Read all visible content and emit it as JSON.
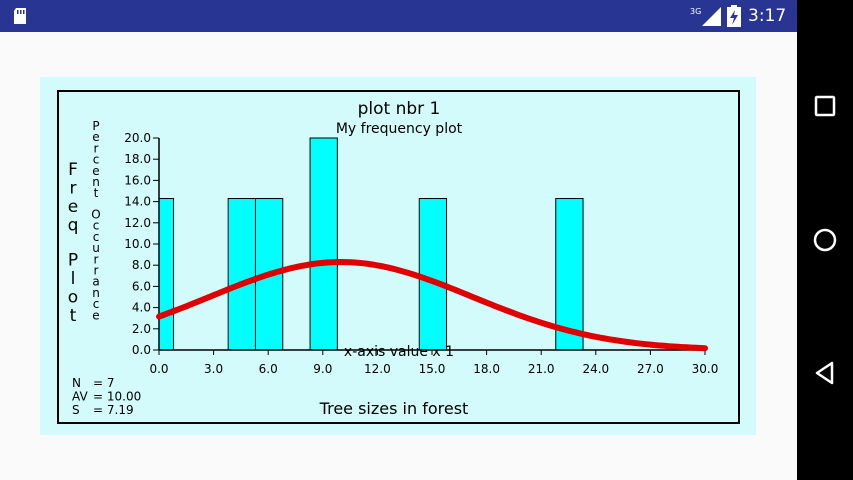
{
  "status_bar": {
    "time": "3:17",
    "network_type": "3G",
    "icons": [
      "sd-card-icon",
      "signal-icon",
      "battery-charging-icon"
    ]
  },
  "nav_bar": {
    "buttons": [
      "recents-square-icon",
      "home-circle-icon",
      "back-triangle-icon"
    ]
  },
  "chart_data": {
    "type": "bar",
    "title": "plot nbr 1",
    "subtitle": "My frequency plot",
    "outer_ylabel": "Freq Plot",
    "ylabel": "Percent Occurrance",
    "xlabel": "x-axis value x 1",
    "footer": "Tree sizes in forest",
    "stats": [
      {
        "label": "N",
        "value": "7"
      },
      {
        "label": "AV",
        "value": "10.00"
      },
      {
        "label": "S",
        "value": "7.19"
      }
    ],
    "xlim": [
      0,
      30
    ],
    "ylim": [
      0,
      20
    ],
    "x_ticks": [
      "0.0",
      "3.0",
      "6.0",
      "9.0",
      "12.0",
      "15.0",
      "18.0",
      "21.0",
      "24.0",
      "27.0",
      "30.0"
    ],
    "y_ticks": [
      "0.0",
      "2.0",
      "4.0",
      "6.0",
      "8.0",
      "10.0",
      "12.0",
      "14.0",
      "16.0",
      "18.0",
      "20.0"
    ],
    "bars": [
      {
        "x0": 0.0,
        "x1": 0.8,
        "value": 14.29
      },
      {
        "x0": 3.8,
        "x1": 5.3,
        "value": 14.29
      },
      {
        "x0": 5.3,
        "x1": 6.8,
        "value": 14.29
      },
      {
        "x0": 8.3,
        "x1": 9.8,
        "value": 20.0
      },
      {
        "x0": 14.3,
        "x1": 15.8,
        "value": 14.29
      },
      {
        "x0": 21.8,
        "x1": 23.3,
        "value": 14.29
      }
    ],
    "curve": {
      "type": "normal",
      "mean": 10.0,
      "sd": 7.19,
      "peak": 8.3
    },
    "colors": {
      "bar_fill": "#00ffff",
      "curve": "#e00000",
      "background": "#d3fbfb"
    }
  }
}
